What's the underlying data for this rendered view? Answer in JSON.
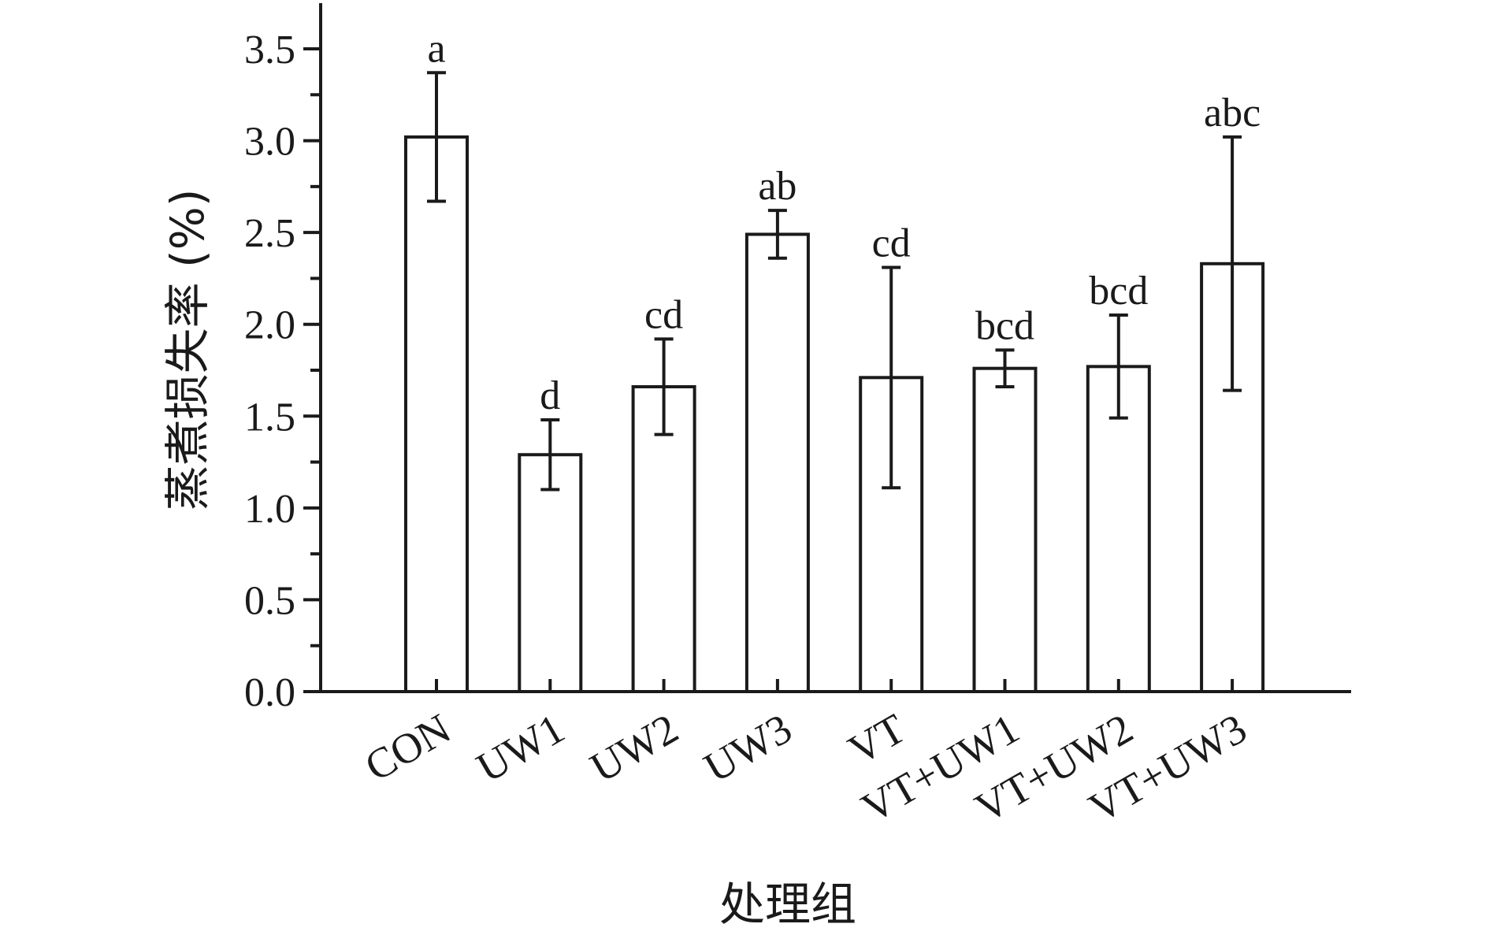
{
  "chart_data": {
    "type": "bar",
    "title": "",
    "xlabel": "处理组",
    "ylabel": "蒸煮损失率 (%)",
    "categories": [
      "CON",
      "UW1",
      "UW2",
      "UW3",
      "VT",
      "VT+UW1",
      "VT+UW2",
      "VT+UW3"
    ],
    "values": [
      3.02,
      1.29,
      1.66,
      2.49,
      1.71,
      1.76,
      1.77,
      2.33
    ],
    "errors": [
      0.35,
      0.19,
      0.26,
      0.13,
      0.6,
      0.1,
      0.28,
      0.69
    ],
    "significance": [
      "a",
      "d",
      "cd",
      "ab",
      "cd",
      "bcd",
      "bcd",
      "abc"
    ],
    "ylim": [
      0,
      3.5
    ],
    "yticks": [
      "0.0",
      "0.5",
      "1.0",
      "1.5",
      "2.0",
      "2.5",
      "3.0",
      "3.5"
    ],
    "grid": false,
    "legend": "none",
    "bar_fill": "#ffffff",
    "bar_stroke": "#1a1a1a"
  }
}
